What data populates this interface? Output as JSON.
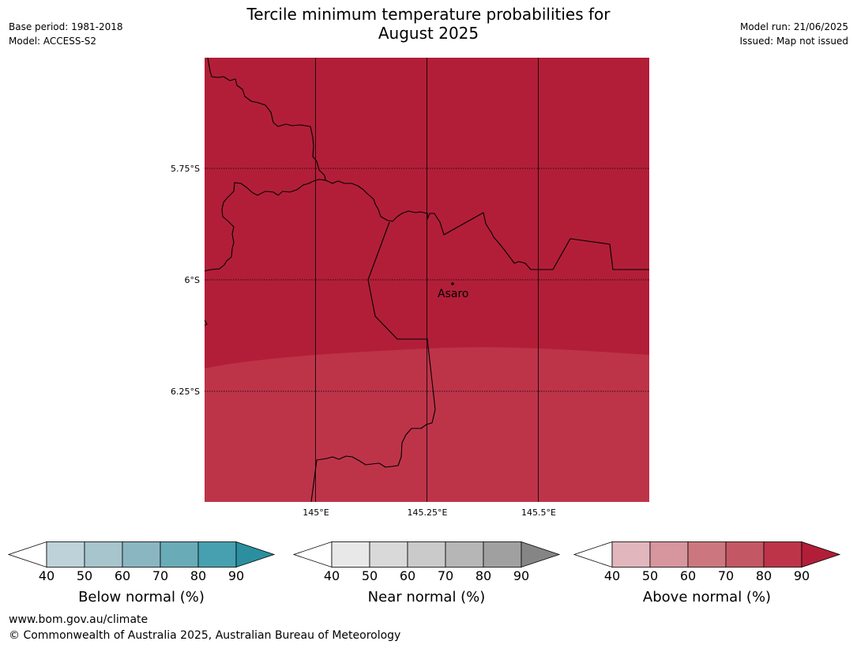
{
  "header": {
    "base_period": "Base period: 1981-2018",
    "model": "Model: ACCESS-S2",
    "title_line1": "Tercile minimum temperature probabilities for",
    "title_line2": "August 2025",
    "model_run": "Model run: 21/06/2025",
    "issued": "Issued: Map not issued"
  },
  "map": {
    "lat_ticks": [
      "5.75°S",
      "6°S",
      "6.25°S"
    ],
    "lon_ticks": [
      "145°E",
      "145.25°E",
      "145.5°E"
    ],
    "place": "Asaro",
    "colors": {
      "region_high": "#b21e38",
      "region_lower": "#bd3449",
      "border": "#000000",
      "gridline": "#000000"
    }
  },
  "colorbars": [
    {
      "label": "Below normal (%)",
      "ticks": [
        "40",
        "50",
        "60",
        "70",
        "80",
        "90"
      ],
      "colors": [
        "#ffffff",
        "#bdd3d9",
        "#a6c5cc",
        "#8ab6c2",
        "#6aabb8",
        "#46a0b0",
        "#2b8f9f"
      ]
    },
    {
      "label": "Near normal (%)",
      "ticks": [
        "40",
        "50",
        "60",
        "70",
        "80",
        "90"
      ],
      "colors": [
        "#ffffff",
        "#e8e8e8",
        "#d9d9d9",
        "#cacaca",
        "#b6b6b6",
        "#a0a0a0",
        "#858585"
      ]
    },
    {
      "label": "Above normal (%)",
      "ticks": [
        "40",
        "50",
        "60",
        "70",
        "80",
        "90"
      ],
      "colors": [
        "#ffffff",
        "#e2b6bd",
        "#d7959e",
        "#cc777f",
        "#c45764",
        "#bd3449",
        "#b21e38"
      ]
    }
  ],
  "footer": {
    "url": "www.bom.gov.au/climate",
    "copyright": "© Commonwealth of Australia 2025, Australian Bureau of Meteorology"
  }
}
